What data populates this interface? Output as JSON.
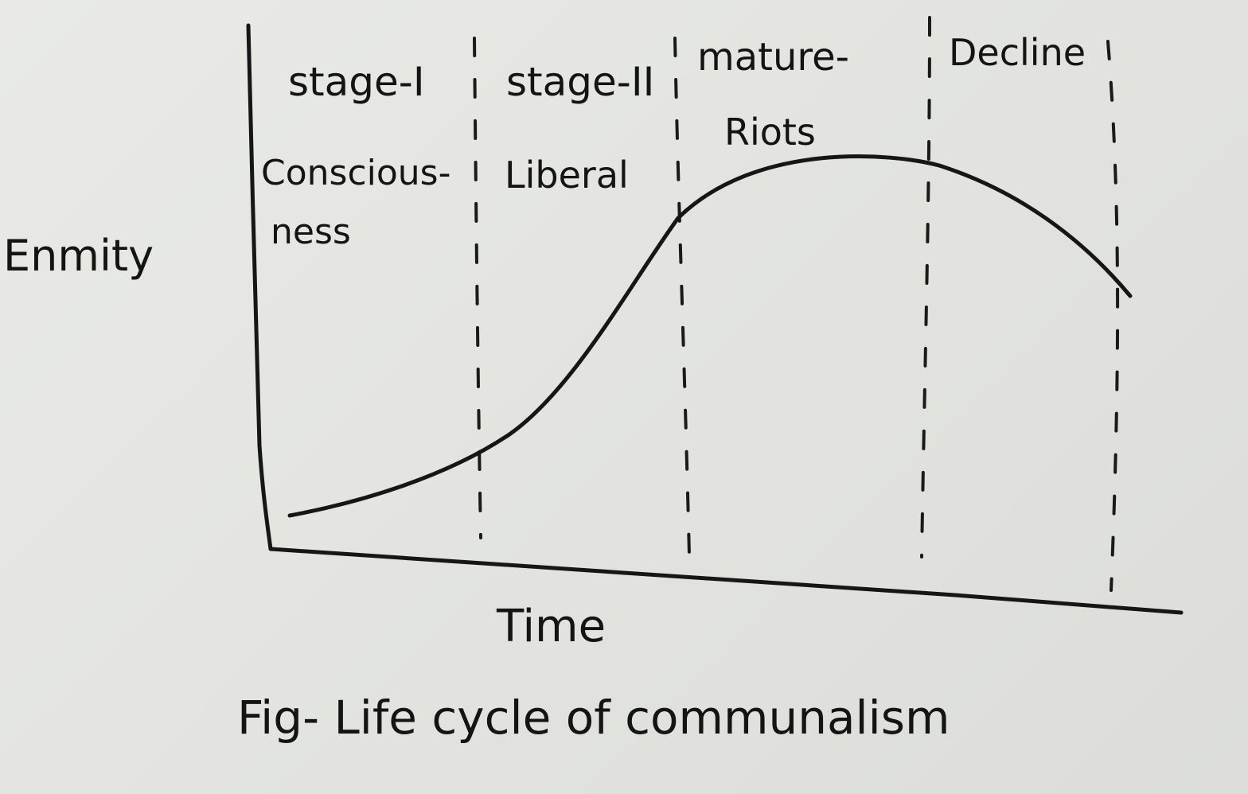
{
  "figure": {
    "caption": "Fig- Life cycle of communalism",
    "y_axis_label": "Enmity",
    "x_axis_label": "Time"
  },
  "stages": [
    {
      "heading": "stage-I",
      "name_line1": "Conscious-",
      "name_line2": "ness"
    },
    {
      "heading": "stage-II",
      "name_line1": "Liberal",
      "name_line2": ""
    },
    {
      "heading": "mature-",
      "name_line1": "Riots",
      "name_line2": ""
    },
    {
      "heading": "Decline",
      "name_line1": "",
      "name_line2": ""
    }
  ],
  "colors": {
    "ink": "#161616",
    "paper": "#e4e5e1"
  }
}
